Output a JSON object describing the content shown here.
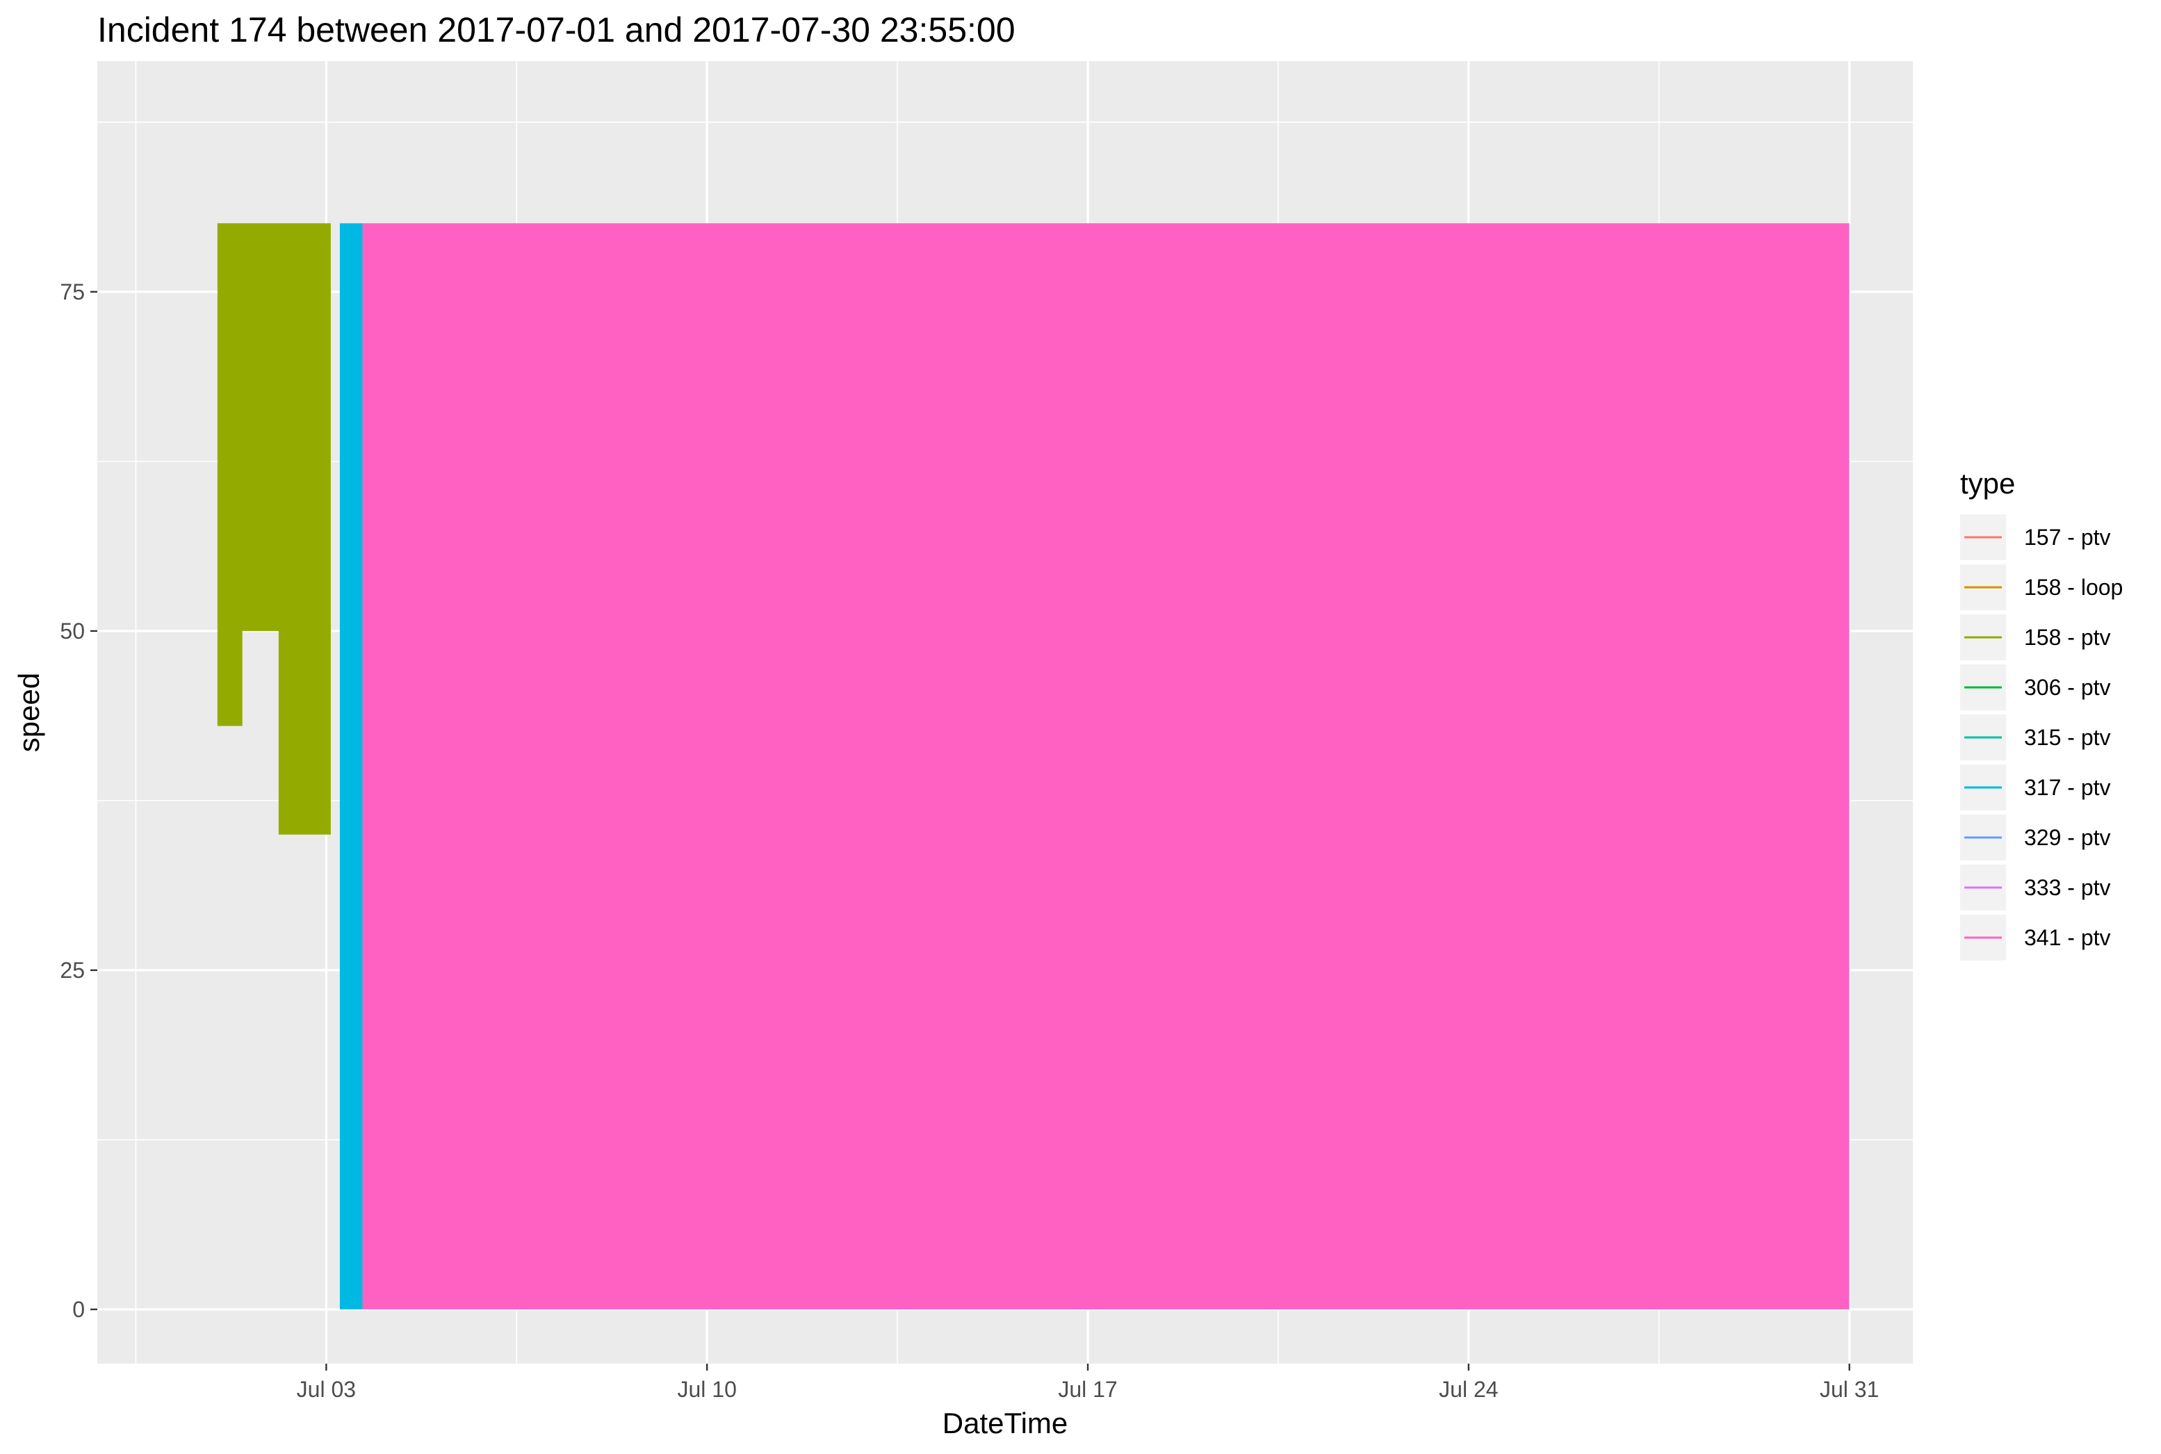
{
  "chart_data": {
    "type": "area",
    "title": "Incident 174 between 2017-07-01 and 2017-07-30 23:55:00",
    "xlabel": "DateTime",
    "ylabel": "speed",
    "xlim": [
      "2017-06-28T19:00:00",
      "2017-08-01T04:00:00"
    ],
    "ylim": [
      -4,
      92
    ],
    "x_ticks": [
      {
        "value": "2017-07-03T00:00:00",
        "label": "Jul 03"
      },
      {
        "value": "2017-07-10T00:00:00",
        "label": "Jul 10"
      },
      {
        "value": "2017-07-17T00:00:00",
        "label": "Jul 17"
      },
      {
        "value": "2017-07-24T00:00:00",
        "label": "Jul 24"
      },
      {
        "value": "2017-07-31T00:00:00",
        "label": "Jul 31"
      }
    ],
    "y_ticks": [
      0,
      25,
      50,
      75
    ],
    "grid": true,
    "legend": {
      "title": "type",
      "position": "right"
    },
    "series": [
      {
        "name": "157 - ptv",
        "color": "#F8766D",
        "points": []
      },
      {
        "name": "158 - loop",
        "color": "#D39200",
        "points": []
      },
      {
        "name": "158 - ptv",
        "color": "#93AA00",
        "points": [
          {
            "x": "2017-07-01T00:00:00",
            "ymin": 43,
            "ymax": 80
          },
          {
            "x": "2017-07-01T11:00:00",
            "ymin": 43,
            "ymax": 80
          },
          {
            "x": "2017-07-01T11:00:00",
            "ymin": 50,
            "ymax": 80
          },
          {
            "x": "2017-07-02T03:00:00",
            "ymin": 50,
            "ymax": 80
          },
          {
            "x": "2017-07-02T03:00:00",
            "ymin": 35,
            "ymax": 80
          },
          {
            "x": "2017-07-03T02:00:00",
            "ymin": 35,
            "ymax": 80
          }
        ]
      },
      {
        "name": "306 - ptv",
        "color": "#00BA38",
        "points": []
      },
      {
        "name": "315 - ptv",
        "color": "#00C19F",
        "points": []
      },
      {
        "name": "317 - ptv",
        "color": "#00B9E3",
        "points": [
          {
            "x": "2017-07-03T06:00:00",
            "ymin": 0,
            "ymax": 80
          },
          {
            "x": "2017-07-03T16:00:00",
            "ymin": 0,
            "ymax": 80
          }
        ]
      },
      {
        "name": "329 - ptv",
        "color": "#619CFF",
        "points": []
      },
      {
        "name": "333 - ptv",
        "color": "#DB72FB",
        "points": []
      },
      {
        "name": "341 - ptv",
        "color": "#FF61C3",
        "points": [
          {
            "x": "2017-07-03T16:00:00",
            "ymin": 0,
            "ymax": 80
          },
          {
            "x": "2017-07-30T23:55:00",
            "ymin": 0,
            "ymax": 80
          }
        ]
      }
    ]
  }
}
